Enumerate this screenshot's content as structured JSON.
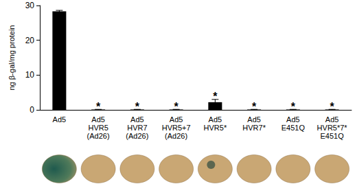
{
  "chart_data": {
    "type": "bar",
    "y_label": "ng β-gal/mg protein",
    "categories": [
      "Ad5",
      "Ad5\nHVR5\n(Ad26)",
      "Ad5\nHVR7\n(Ad26)",
      "Ad5\nHVR5+7\n(Ad26)",
      "Ad5\nHVR5*",
      "Ad5\nHVR7*",
      "Ad5\nE451Q",
      "Ad5\nHVR5*7*\nE451Q"
    ],
    "values": [
      28.3,
      0.1,
      0.1,
      0.1,
      2.2,
      0.1,
      0.1,
      0.1
    ],
    "errors": [
      0.3,
      0.05,
      0.05,
      0.05,
      0.8,
      0.05,
      0.05,
      0.05
    ],
    "color": "#000000",
    "ylim": [
      0,
      30
    ],
    "yticks": [
      0,
      10,
      20,
      30
    ],
    "grid": false,
    "annotations": [
      {
        "category": "Ad5\nHVR5\n(Ad26)",
        "text": "*"
      },
      {
        "category": "Ad5\nHVR7\n(Ad26)",
        "text": "*"
      },
      {
        "category": "Ad5\nHVR5+7\n(Ad26)",
        "text": "*"
      },
      {
        "category": "Ad5\nHVR5*",
        "text": "*"
      },
      {
        "category": "Ad5\nHVR7*",
        "text": "*"
      },
      {
        "category": "Ad5\nE451Q",
        "text": "*"
      },
      {
        "category": "Ad5\nHVR5*7*\nE451Q",
        "text": "*"
      }
    ]
  }
}
